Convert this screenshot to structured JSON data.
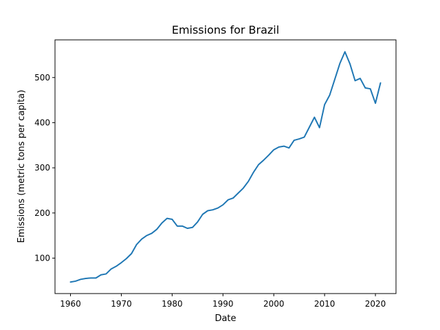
{
  "chart_data": {
    "type": "line",
    "title": "Emissions for Brazil",
    "xlabel": "Date",
    "ylabel": "Emissions (metric tons per capita)",
    "xlim": [
      1956.95,
      2024.05
    ],
    "ylim": [
      21.5,
      583.4
    ],
    "xticks": [
      1960,
      1970,
      1980,
      1990,
      2000,
      2010,
      2020
    ],
    "yticks": [
      100,
      200,
      300,
      400,
      500
    ],
    "grid": false,
    "line_color": "#1f77b4",
    "series": [
      {
        "x": [
          1960,
          1961,
          1962,
          1963,
          1964,
          1965,
          1966,
          1967,
          1968,
          1969,
          1970,
          1971,
          1972,
          1973,
          1974,
          1975,
          1976,
          1977,
          1978,
          1979,
          1980,
          1981,
          1982,
          1983,
          1984,
          1985,
          1986,
          1987,
          1988,
          1989,
          1990,
          1991,
          1992,
          1993,
          1994,
          1995,
          1996,
          1997,
          1998,
          1999,
          2000,
          2001,
          2002,
          2003,
          2004,
          2005,
          2006,
          2007,
          2008,
          2009,
          2010,
          2011,
          2012,
          2013,
          2014,
          2015,
          2016,
          2017,
          2018,
          2019,
          2020,
          2021
        ],
        "values": [
          47,
          49,
          53,
          55,
          56,
          56,
          63,
          65,
          76,
          82,
          90,
          99,
          110,
          130,
          142,
          150,
          155,
          164,
          178,
          188,
          186,
          171,
          171,
          166,
          168,
          180,
          197,
          205,
          207,
          211,
          218,
          229,
          233,
          244,
          255,
          270,
          290,
          307,
          317,
          328,
          340,
          346,
          348,
          344,
          361,
          364,
          368,
          390,
          412,
          389,
          440,
          461,
          496,
          531,
          557,
          530,
          493,
          498,
          477,
          475,
          443,
          488
        ]
      }
    ]
  }
}
